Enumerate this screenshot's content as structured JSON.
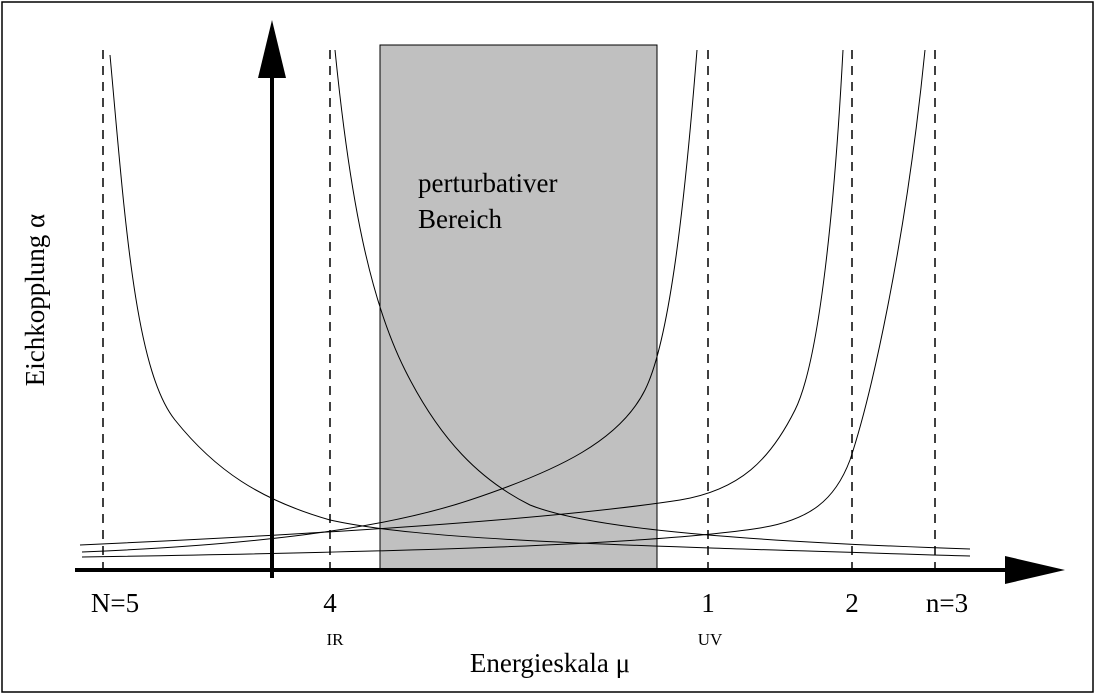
{
  "x_axis": {
    "label": "Energieskala μ",
    "ticks": [
      {
        "label": "N=5"
      },
      {
        "label": "4",
        "sub": "IR"
      },
      {
        "label": "1",
        "sub": "UV"
      },
      {
        "label": "2"
      },
      {
        "label": "n=3"
      }
    ]
  },
  "y_axis": {
    "label": "Eichkopplung α"
  },
  "region": {
    "lines": [
      "perturbativer",
      "Bereich"
    ]
  }
}
